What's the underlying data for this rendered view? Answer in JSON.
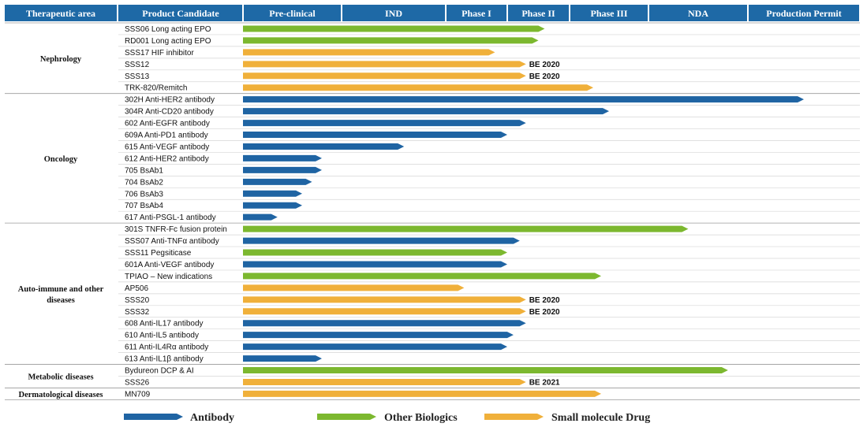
{
  "chart_data": {
    "type": "bar",
    "stages": [
      "Pre-clinical",
      "IND",
      "Phase I",
      "Phase II",
      "Phase III",
      "NDA",
      "Production Permit"
    ],
    "header": {
      "area": "Therapeutic area",
      "product": "Product Candidate"
    },
    "colors": {
      "header": "#1e69a6",
      "Antibody": "#1f64a3",
      "Other Biologics": "#7cb82f",
      "Small molecule Drug": "#f0b03a",
      "grid": "#d6d6d6"
    },
    "legend": [
      {
        "label": "Antibody",
        "type": "Antibody"
      },
      {
        "label": "Other Biologics",
        "type": "Other Biologics"
      },
      {
        "label": "Small molecule Drug",
        "type": "Small molecule Drug"
      }
    ],
    "groups": [
      {
        "area": "Nephrology",
        "rows": [
          {
            "name": "SSS06 Long acting EPO",
            "type": "Other Biologics",
            "progress": 3.6
          },
          {
            "name": "RD001 Long acting EPO",
            "type": "Other Biologics",
            "progress": 3.5
          },
          {
            "name": "SSS17 HIF inhibitor",
            "type": "Small molecule Drug",
            "progress": 2.8
          },
          {
            "name": "SSS12",
            "type": "Small molecule Drug",
            "progress": 3.3,
            "note": "BE 2020"
          },
          {
            "name": "SSS13",
            "type": "Small molecule Drug",
            "progress": 3.3,
            "note": "BE 2020"
          },
          {
            "name": "TRK-820/Remitch",
            "type": "Small molecule Drug",
            "progress": 4.3
          }
        ]
      },
      {
        "area": "Oncology",
        "rows": [
          {
            "name": "302H Anti-HER2 antibody",
            "type": "Antibody",
            "progress": 6.5
          },
          {
            "name": "304R Anti-CD20 antibody",
            "type": "Antibody",
            "progress": 4.5
          },
          {
            "name": "602   Anti-EGFR antibody",
            "type": "Antibody",
            "progress": 3.3
          },
          {
            "name": "609A Anti-PD1 antibody",
            "type": "Antibody",
            "progress": 3.0
          },
          {
            "name": "615 Anti-VEGF antibody",
            "type": "Antibody",
            "progress": 1.6
          },
          {
            "name": "612   Anti-HER2 antibody",
            "type": "Antibody",
            "progress": 0.8
          },
          {
            "name": "705   BsAb1",
            "type": "Antibody",
            "progress": 0.8
          },
          {
            "name": "704   BsAb2",
            "type": "Antibody",
            "progress": 0.7
          },
          {
            "name": "706   BsAb3",
            "type": "Antibody",
            "progress": 0.6
          },
          {
            "name": "707   BsAb4",
            "type": "Antibody",
            "progress": 0.6
          },
          {
            "name": "617  Anti-PSGL-1 antibody",
            "type": "Antibody",
            "progress": 0.35
          }
        ]
      },
      {
        "area": "Auto-immune and other diseases",
        "rows": [
          {
            "name": "301S TNFR-Fc fusion protein",
            "type": "Other Biologics",
            "progress": 5.4
          },
          {
            "name": "SSS07  Anti-TNFα antibody",
            "type": "Antibody",
            "progress": 3.2
          },
          {
            "name": "SSS11  Pegsiticase",
            "type": "Other Biologics",
            "progress": 3.0
          },
          {
            "name": "601A  Anti-VEGF antibody",
            "type": "Antibody",
            "progress": 3.0
          },
          {
            "name": "TPIAO – New indications",
            "type": "Other Biologics",
            "progress": 4.4
          },
          {
            "name": "AP506",
            "type": "Small molecule Drug",
            "progress": 2.3
          },
          {
            "name": "SSS20",
            "type": "Small molecule Drug",
            "progress": 3.3,
            "note": "BE 2020"
          },
          {
            "name": "SSS32",
            "type": "Small molecule Drug",
            "progress": 3.3,
            "note": "BE 2020"
          },
          {
            "name": "608  Anti-IL17 antibody",
            "type": "Antibody",
            "progress": 3.3
          },
          {
            "name": "610 Anti-IL5 antibody",
            "type": "Antibody",
            "progress": 3.1
          },
          {
            "name": "611 Anti-IL4Rα antibody",
            "type": "Antibody",
            "progress": 3.0
          },
          {
            "name": "613 Anti-IL1β antibody",
            "type": "Antibody",
            "progress": 0.8
          }
        ]
      },
      {
        "area": "Metabolic diseases",
        "rows": [
          {
            "name": "Bydureon DCP & AI",
            "type": "Other Biologics",
            "progress": 5.8
          },
          {
            "name": "SSS26",
            "type": "Small molecule Drug",
            "progress": 3.3,
            "note": "BE 2021"
          }
        ]
      },
      {
        "area": "Dermatological diseases",
        "rows": [
          {
            "name": "MN709",
            "type": "Small molecule Drug",
            "progress": 4.4
          }
        ]
      }
    ]
  }
}
